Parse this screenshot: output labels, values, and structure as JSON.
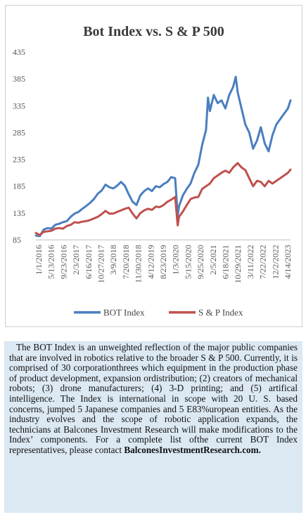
{
  "chart_data": {
    "type": "line",
    "title": "Bot Index vs. S & P 500",
    "xlabel": "",
    "ylabel": "",
    "ylim": [
      85,
      435
    ],
    "yticks": [
      "435",
      "385",
      "335",
      "285",
      "235",
      "185",
      "135",
      "85"
    ],
    "xticks": [
      "1/1/2016",
      "5/13/2016",
      "9/23/2016",
      "2/3/2017",
      "6/16/2017",
      "10/27/2017",
      "3/9/2018",
      "7/20/2018",
      "11/30/2018",
      "4/12/2019",
      "8/23/2019",
      "1/3/2020",
      "5/15/2020",
      "9/25/2020",
      "2/5/2021",
      "6/18/2021",
      "10/29/2021",
      "3/11/2022",
      "7/22/2022",
      "12/2/2022",
      "4/14/2023"
    ],
    "grid": false,
    "legend": "bottom",
    "series": [
      {
        "name": "BOT Index",
        "color": "#4a7ec0",
        "x": [
          "2016-01-01",
          "2016-02-12",
          "2016-03-25",
          "2016-05-06",
          "2016-06-17",
          "2016-07-29",
          "2016-09-09",
          "2016-10-21",
          "2016-12-02",
          "2017-01-13",
          "2017-02-24",
          "2017-04-07",
          "2017-05-19",
          "2017-06-30",
          "2017-08-11",
          "2017-09-22",
          "2017-11-03",
          "2017-12-15",
          "2018-01-26",
          "2018-03-09",
          "2018-04-20",
          "2018-06-01",
          "2018-07-13",
          "2018-08-24",
          "2018-10-05",
          "2018-11-16",
          "2018-12-28",
          "2019-02-08",
          "2019-03-22",
          "2019-05-03",
          "2019-06-14",
          "2019-07-26",
          "2019-09-06",
          "2019-10-18",
          "2019-11-29",
          "2020-01-10",
          "2020-02-21",
          "2020-03-20",
          "2020-04-03",
          "2020-05-15",
          "2020-06-26",
          "2020-08-07",
          "2020-09-18",
          "2020-10-30",
          "2020-12-11",
          "2021-01-22",
          "2021-02-12",
          "2021-03-05",
          "2021-04-16",
          "2021-05-28",
          "2021-07-09",
          "2021-08-20",
          "2021-10-01",
          "2021-11-12",
          "2021-12-10",
          "2021-12-31",
          "2022-02-11",
          "2022-03-25",
          "2022-05-06",
          "2022-06-17",
          "2022-07-29",
          "2022-09-09",
          "2022-10-21",
          "2022-12-02",
          "2023-01-13",
          "2023-02-24",
          "2023-04-07",
          "2023-05-19",
          "2023-06-30",
          "2023-07-28"
        ],
        "y": [
          93,
          92,
          104,
          107,
          106,
          113,
          115,
          118,
          120,
          128,
          134,
          137,
          143,
          148,
          154,
          161,
          171,
          177,
          188,
          183,
          181,
          186,
          193,
          186,
          170,
          156,
          150,
          168,
          176,
          181,
          176,
          185,
          183,
          189,
          193,
          202,
          200,
          130,
          148,
          168,
          180,
          190,
          210,
          225,
          262,
          290,
          350,
          325,
          355,
          340,
          345,
          330,
          355,
          370,
          389,
          360,
          330,
          300,
          285,
          255,
          270,
          295,
          265,
          250,
          280,
          300,
          310,
          320,
          330,
          345
        ]
      },
      {
        "name": "S & P Index",
        "color": "#c0504d",
        "x": [
          "2016-01-01",
          "2016-02-12",
          "2016-03-25",
          "2016-05-06",
          "2016-06-17",
          "2016-07-29",
          "2016-09-09",
          "2016-10-21",
          "2016-12-02",
          "2017-01-13",
          "2017-02-24",
          "2017-04-07",
          "2017-05-19",
          "2017-06-30",
          "2017-08-11",
          "2017-09-22",
          "2017-11-03",
          "2017-12-15",
          "2018-01-26",
          "2018-03-09",
          "2018-04-20",
          "2018-06-01",
          "2018-07-13",
          "2018-08-24",
          "2018-10-05",
          "2018-11-16",
          "2018-12-28",
          "2019-02-08",
          "2019-03-22",
          "2019-05-03",
          "2019-06-14",
          "2019-07-26",
          "2019-09-06",
          "2019-10-18",
          "2019-11-29",
          "2020-01-10",
          "2020-02-21",
          "2020-03-20",
          "2020-04-03",
          "2020-05-15",
          "2020-06-26",
          "2020-08-07",
          "2020-09-18",
          "2020-10-30",
          "2020-12-11",
          "2021-01-22",
          "2021-03-05",
          "2021-04-16",
          "2021-05-28",
          "2021-07-09",
          "2021-08-20",
          "2021-10-01",
          "2021-11-12",
          "2021-12-31",
          "2022-02-11",
          "2022-03-25",
          "2022-05-06",
          "2022-06-17",
          "2022-07-29",
          "2022-09-09",
          "2022-10-21",
          "2022-12-02",
          "2023-01-13",
          "2023-02-24",
          "2023-04-07",
          "2023-05-19",
          "2023-06-30",
          "2023-07-28"
        ],
        "y": [
          98,
          94,
          100,
          101,
          102,
          106,
          107,
          106,
          111,
          113,
          118,
          117,
          119,
          120,
          122,
          125,
          128,
          133,
          139,
          134,
          134,
          137,
          140,
          143,
          145,
          134,
          125,
          135,
          140,
          143,
          141,
          147,
          146,
          150,
          156,
          160,
          165,
          112,
          128,
          138,
          150,
          161,
          164,
          165,
          180,
          185,
          190,
          200,
          205,
          210,
          214,
          210,
          220,
          228,
          220,
          215,
          200,
          185,
          195,
          193,
          185,
          195,
          190,
          195,
          200,
          205,
          210,
          216
        ]
      }
    ]
  },
  "description": {
    "text": "The BOT Index is an unweighted reflection of the major public companies that are involved in robotics relative to the broader S & P 500. Currently, it is comprised of 30 corporationthrees which equipment in the production phase of product development, expansion ordistribution; (2) creators of mechanical robots; (3) drone manufacturers; (4) 3-D printing; and (5) artifical intelligence. The Index is international in scope with 20 U. S. based concerns, jumped 5 Japanese companies and 5 E83%uropean entities. As the industry evolves and the scope of robotic application expands, the technicians at Balcones Investment Research will make modifications to the Index’ components. For a  complete list ofthe current   BOT   Index   representatives,   please   contact ",
    "link": "BalconesInvestmentResearch.com."
  }
}
